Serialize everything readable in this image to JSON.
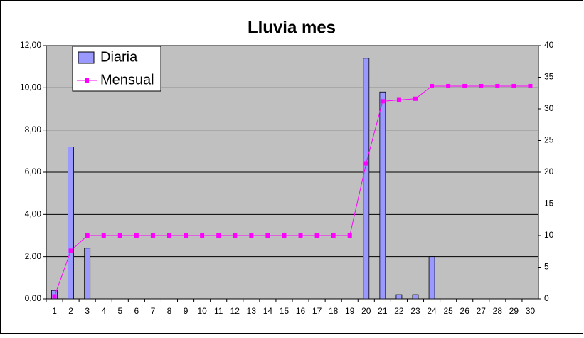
{
  "chart_data": {
    "type": "bar-line",
    "title": "Lluvia mes",
    "categories": [
      "1",
      "2",
      "3",
      "4",
      "5",
      "6",
      "7",
      "8",
      "9",
      "10",
      "11",
      "12",
      "13",
      "14",
      "15",
      "16",
      "17",
      "18",
      "19",
      "20",
      "21",
      "22",
      "23",
      "24",
      "25",
      "26",
      "27",
      "28",
      "29",
      "30"
    ],
    "series": [
      {
        "name": "Diaria",
        "type": "bar",
        "color": "#9999ff",
        "axis": "y",
        "values": [
          0.4,
          7.2,
          2.4,
          0,
          0,
          0,
          0,
          0,
          0,
          0,
          0,
          0,
          0,
          0,
          0,
          0,
          0,
          0,
          0,
          11.4,
          9.8,
          0.2,
          0.2,
          2.0,
          0,
          0,
          0,
          0,
          0,
          0
        ]
      },
      {
        "name": "Mensual",
        "type": "line",
        "color": "#ff00ff",
        "axis": "y2",
        "values": [
          0.4,
          7.6,
          10,
          10,
          10,
          10,
          10,
          10,
          10,
          10,
          10,
          10,
          10,
          10,
          10,
          10,
          10,
          10,
          10,
          21.4,
          31.2,
          31.4,
          31.6,
          33.6,
          33.6,
          33.6,
          33.6,
          33.6,
          33.6,
          33.6
        ]
      }
    ],
    "ylim": [
      0,
      12
    ],
    "yticks": [
      {
        "value": 0,
        "label": "0,00"
      },
      {
        "value": 2,
        "label": "2,00"
      },
      {
        "value": 4,
        "label": "4,00"
      },
      {
        "value": 6,
        "label": "6,00"
      },
      {
        "value": 8,
        "label": "8,00"
      },
      {
        "value": 10,
        "label": "10,00"
      },
      {
        "value": 12,
        "label": "12,00"
      }
    ],
    "y2lim": [
      0,
      40
    ],
    "y2ticks": [
      0,
      5,
      10,
      15,
      20,
      25,
      30,
      35,
      40
    ],
    "grid": true,
    "legend": "top-left"
  }
}
